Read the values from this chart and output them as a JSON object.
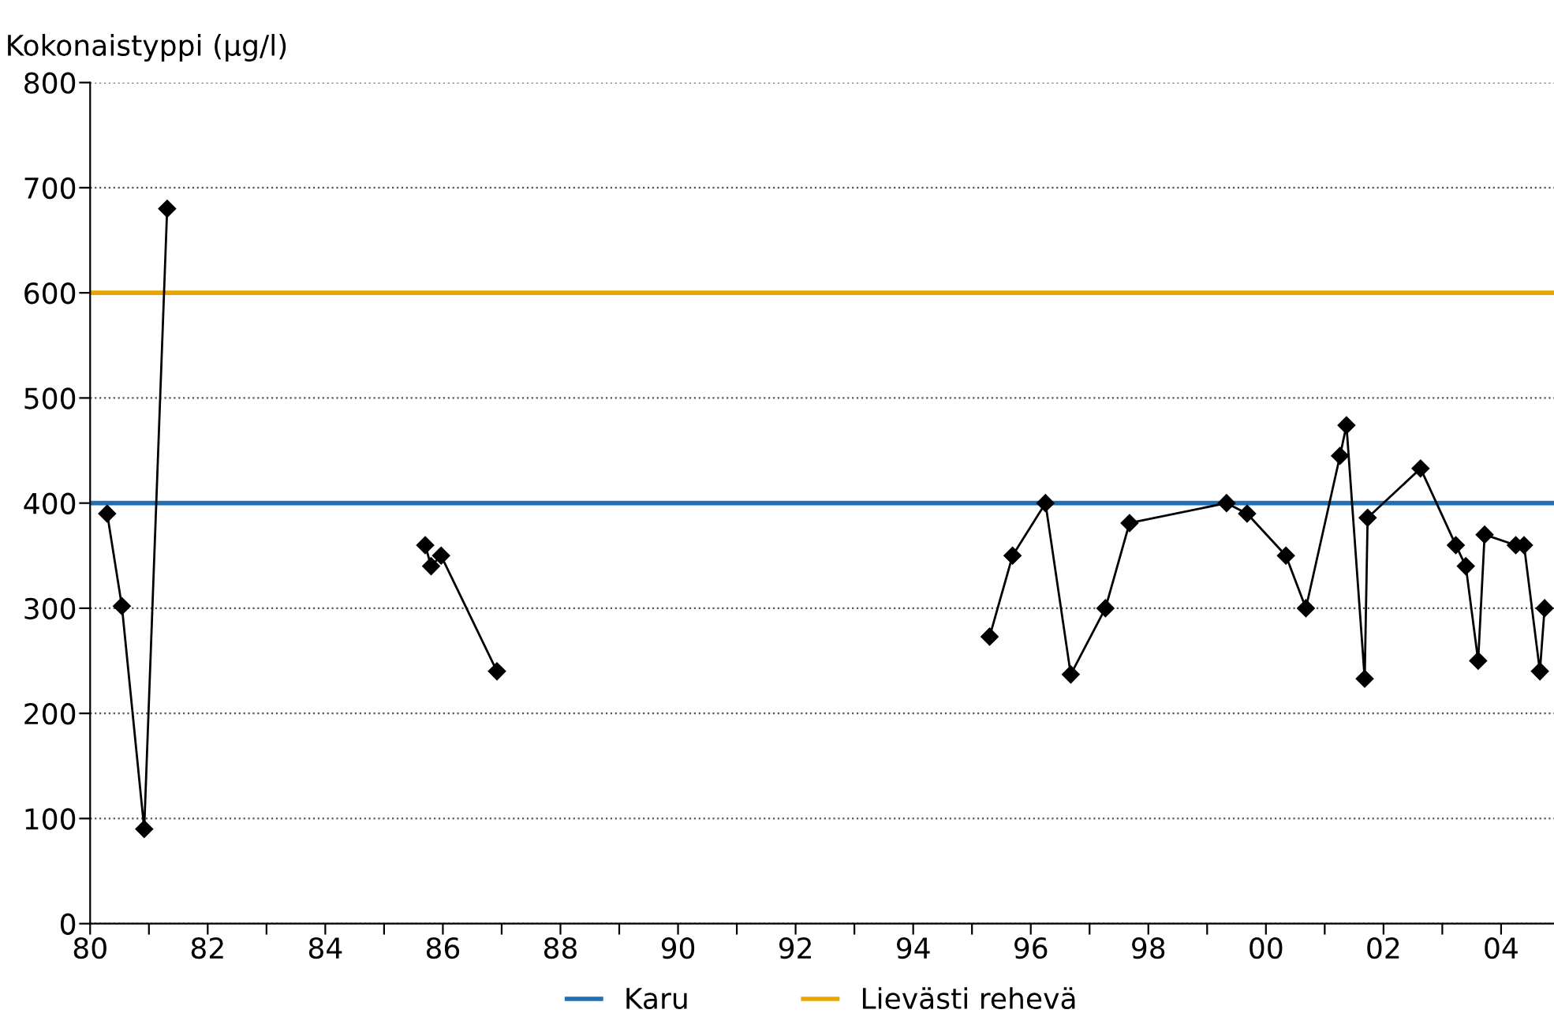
{
  "chart_data": {
    "type": "line",
    "ylabel": "Kokonaistyppi (µg/l)",
    "x": [
      1980.29,
      1980.54,
      1980.92,
      1981.31,
      1983.0,
      1985.7,
      1985.8,
      1985.97,
      1986.92,
      1990.0,
      1995.3,
      1995.69,
      1996.25,
      1996.68,
      1997.27,
      1997.68,
      1999.33,
      1999.68,
      2000.34,
      2000.68,
      2001.26,
      2001.37,
      2001.68,
      2001.73,
      2002.63,
      2003.23,
      2003.4,
      2003.61,
      2003.72,
      2004.25,
      2004.39,
      2004.66,
      2004.74
    ],
    "series": [
      {
        "color": "#000000",
        "marker": "diamond",
        "line_style": "solid",
        "values": [
          390,
          302,
          90,
          680,
          null,
          360,
          340,
          350,
          240,
          null,
          273,
          350,
          400,
          237,
          300,
          381,
          400,
          390,
          350,
          300,
          445,
          474,
          233,
          386,
          433,
          360,
          340,
          250,
          370,
          360,
          360,
          240,
          300
        ]
      }
    ],
    "xlim": [
      1980,
      2004.9
    ],
    "ylim": [
      0,
      800
    ],
    "xticks": [
      {
        "value": 1980,
        "label": "80"
      },
      {
        "value": 1981,
        "label": null
      },
      {
        "value": 1982,
        "label": "82"
      },
      {
        "value": 1983,
        "label": null
      },
      {
        "value": 1984,
        "label": "84"
      },
      {
        "value": 1985,
        "label": null
      },
      {
        "value": 1986,
        "label": "86"
      },
      {
        "value": 1987,
        "label": null
      },
      {
        "value": 1988,
        "label": "88"
      },
      {
        "value": 1989,
        "label": null
      },
      {
        "value": 1990,
        "label": "90"
      },
      {
        "value": 1991,
        "label": null
      },
      {
        "value": 1992,
        "label": "92"
      },
      {
        "value": 1993,
        "label": null
      },
      {
        "value": 1994,
        "label": "94"
      },
      {
        "value": 1995,
        "label": null
      },
      {
        "value": 1996,
        "label": "96"
      },
      {
        "value": 1997,
        "label": null
      },
      {
        "value": 1998,
        "label": "98"
      },
      {
        "value": 1999,
        "label": null
      },
      {
        "value": 2000,
        "label": "00"
      },
      {
        "value": 2001,
        "label": null
      },
      {
        "value": 2002,
        "label": "02"
      },
      {
        "value": 2003,
        "label": null
      },
      {
        "value": 2004,
        "label": "04"
      }
    ],
    "yticks": [
      0,
      100,
      200,
      300,
      400,
      500,
      600,
      700,
      800
    ],
    "ref_lines": [
      {
        "axis": "y",
        "value": 400,
        "label": "Karu",
        "color": "#1f6fb2"
      },
      {
        "axis": "y",
        "value": 600,
        "label": "Lievästi rehevä",
        "color": "#e8a600"
      }
    ],
    "grid": "y",
    "legend": "bottom"
  }
}
